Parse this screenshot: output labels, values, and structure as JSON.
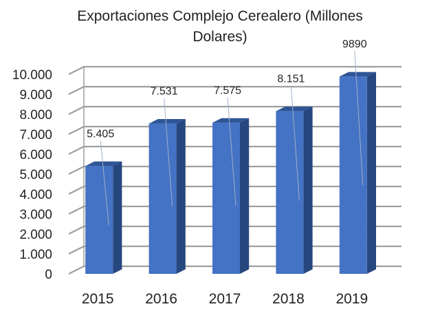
{
  "chart_data": {
    "type": "bar",
    "title_line1": "Exportaciones Complejo Cerealero (Millones",
    "title_line2": "Dolares)",
    "categories": [
      "2015",
      "2016",
      "2017",
      "2018",
      "2019"
    ],
    "values": [
      5405,
      7531,
      7575,
      8151,
      9890
    ],
    "data_labels": [
      "5.405",
      "7.531",
      "7.575",
      "8.151",
      "9890"
    ],
    "y_ticks": [
      0,
      1000,
      2000,
      3000,
      4000,
      5000,
      6000,
      7000,
      8000,
      9000,
      10000
    ],
    "y_tick_labels": [
      "0",
      "1.000",
      "2.000",
      "3.000",
      "4.000",
      "5.000",
      "6.000",
      "7.000",
      "8.000",
      "9.000",
      "10.000"
    ],
    "ylim": [
      0,
      10000
    ],
    "grid": true,
    "legend": "none",
    "three_d": true,
    "colors": {
      "bar_front": "#4472c4",
      "bar_side": "#27477f",
      "bar_top": "#2f5597",
      "grid": "#9e9e9e",
      "wall": "#bfbfbf"
    }
  }
}
